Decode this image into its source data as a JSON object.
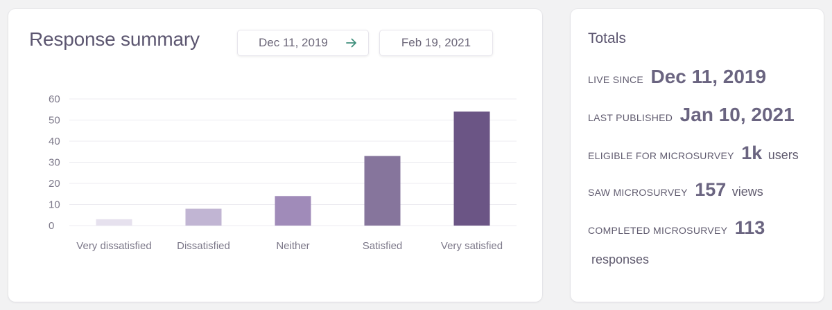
{
  "summary": {
    "title": "Response summary",
    "start_date": "Dec 11, 2019",
    "end_date": "Feb 19, 2021"
  },
  "totals": {
    "title": "Totals",
    "live_since_label": "LIVE SINCE",
    "live_since_value": "Dec 11, 2019",
    "last_published_label": "LAST PUBLISHED",
    "last_published_value": "Jan 10, 2021",
    "eligible_label": "ELIGIBLE FOR MICROSURVEY",
    "eligible_value": "1k",
    "eligible_unit": "users",
    "saw_label": "SAW MICROSURVEY",
    "saw_value": "157",
    "saw_unit": "views",
    "completed_label": "COMPLETED MICROSURVEY",
    "completed_value": "113",
    "completed_unit": "responses"
  },
  "colors": {
    "arrow": "#3f8f7c",
    "gridline": "#ecebf0",
    "bars": [
      "#e6e1ee",
      "#c1b5d3",
      "#a08bb9",
      "#86759c",
      "#6b5585"
    ]
  },
  "chart_data": {
    "type": "bar",
    "categories": [
      "Very dissatisfied",
      "Dissatisfied",
      "Neither",
      "Satisfied",
      "Very satisfied"
    ],
    "values": [
      3,
      8,
      14,
      33,
      54
    ],
    "ylim": [
      0,
      60
    ],
    "yticks": [
      0,
      10,
      20,
      30,
      40,
      50,
      60
    ],
    "grid": true,
    "legend": "none",
    "title": "",
    "xlabel": "",
    "ylabel": ""
  }
}
